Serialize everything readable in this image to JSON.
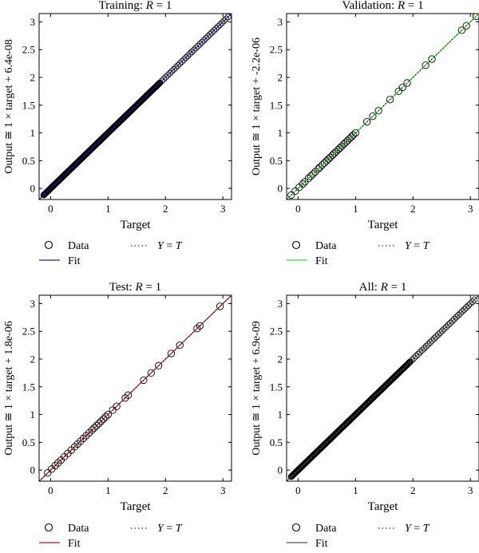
{
  "chart_data": [
    {
      "type": "scatter",
      "title": "Training: R = 1",
      "title_parts": [
        "Training: ",
        "R",
        " = 1"
      ],
      "xlabel": "Target",
      "ylabel": "Output ≅ 1 × target + 6.4e-08",
      "xlim": [
        -0.2,
        3.15
      ],
      "ylim": [
        -0.2,
        3.15
      ],
      "xticks": [
        0,
        1,
        2,
        3
      ],
      "yticks": [
        0,
        0.5,
        1,
        1.5,
        2,
        2.5,
        3
      ],
      "grid": false,
      "fit_color": "#1f1fcf",
      "fit_line": {
        "slope": 1,
        "intercept": 6.4e-08
      },
      "data": {
        "x_range": [
          -0.12,
          3.1
        ],
        "dense_until": 1.9,
        "marker": "circle"
      },
      "legend": {
        "data_label": "Data",
        "fit_label": "Fit",
        "ideal_label": [
          "Y",
          " = ",
          "T"
        ],
        "placement": "below"
      }
    },
    {
      "type": "scatter",
      "title": "Validation: R = 1",
      "title_parts": [
        "Validation: ",
        "R",
        " = 1"
      ],
      "xlabel": "Target",
      "ylabel": "Output ≅ 1 × target + -2.2e-06",
      "xlim": [
        -0.2,
        3.15
      ],
      "ylim": [
        -0.2,
        3.15
      ],
      "xticks": [
        0,
        1,
        2,
        3
      ],
      "yticks": [
        0,
        0.5,
        1,
        1.5,
        2,
        2.5,
        3
      ],
      "grid": false,
      "fit_color": "#2ee62e",
      "fit_line": {
        "slope": 1,
        "intercept": -2.2e-06
      },
      "data": {
        "x": [
          -0.12,
          -0.05,
          0.02,
          0.08,
          0.12,
          0.18,
          0.22,
          0.26,
          0.3,
          0.35,
          0.38,
          0.42,
          0.46,
          0.5,
          0.53,
          0.56,
          0.6,
          0.63,
          0.66,
          0.7,
          0.73,
          0.76,
          0.8,
          0.83,
          0.86,
          0.9,
          0.93,
          0.96,
          1.0,
          1.2,
          1.3,
          1.4,
          1.6,
          1.75,
          1.82,
          1.9,
          2.22,
          2.33,
          2.85,
          2.93,
          3.1
        ],
        "marker": "circle"
      },
      "legend": {
        "data_label": "Data",
        "fit_label": "Fit",
        "ideal_label": [
          "Y",
          " = ",
          "T"
        ],
        "placement": "below"
      }
    },
    {
      "type": "scatter",
      "title": "Test: R = 1",
      "title_parts": [
        "Test: ",
        "R",
        " = 1"
      ],
      "xlabel": "Target",
      "ylabel": "Output ≅ 1 × target + 1.8e-06",
      "xlim": [
        -0.2,
        3.15
      ],
      "ylim": [
        -0.2,
        3.15
      ],
      "xticks": [
        0,
        1,
        2,
        3
      ],
      "yticks": [
        0,
        0.5,
        1,
        1.5,
        2,
        2.5,
        3
      ],
      "grid": false,
      "fit_color": "#d01010",
      "fit_line": {
        "slope": 1,
        "intercept": 1.8e-06
      },
      "data": {
        "x": [
          -0.05,
          0.02,
          0.08,
          0.13,
          0.18,
          0.24,
          0.3,
          0.36,
          0.42,
          0.47,
          0.52,
          0.57,
          0.62,
          0.67,
          0.72,
          0.76,
          0.8,
          0.84,
          0.88,
          0.92,
          0.96,
          1.0,
          1.08,
          1.15,
          1.3,
          1.35,
          1.62,
          1.75,
          1.88,
          2.1,
          2.25,
          2.55,
          2.6,
          2.95
        ],
        "marker": "circle"
      },
      "legend": {
        "data_label": "Data",
        "fit_label": "Fit",
        "ideal_label": [
          "Y",
          " = ",
          "T"
        ],
        "placement": "below"
      }
    },
    {
      "type": "scatter",
      "title": "All: R = 1",
      "title_parts": [
        "All: ",
        "R",
        " = 1"
      ],
      "xlabel": "Target",
      "ylabel": "Output ≅ 1 × target + 6.9e-09",
      "xlim": [
        -0.2,
        3.15
      ],
      "ylim": [
        -0.2,
        3.15
      ],
      "xticks": [
        0,
        1,
        2,
        3
      ],
      "yticks": [
        0,
        0.5,
        1,
        1.5,
        2,
        2.5,
        3
      ],
      "grid": false,
      "fit_color": "#555555",
      "fit_line": {
        "slope": 1,
        "intercept": 6.9e-09
      },
      "data": {
        "x_range": [
          -0.12,
          3.1
        ],
        "dense_until": 1.95,
        "marker": "circle"
      },
      "legend": {
        "data_label": "Data",
        "fit_label": "Fit",
        "ideal_label": [
          "Y",
          " = ",
          "T"
        ],
        "placement": "below"
      }
    }
  ]
}
